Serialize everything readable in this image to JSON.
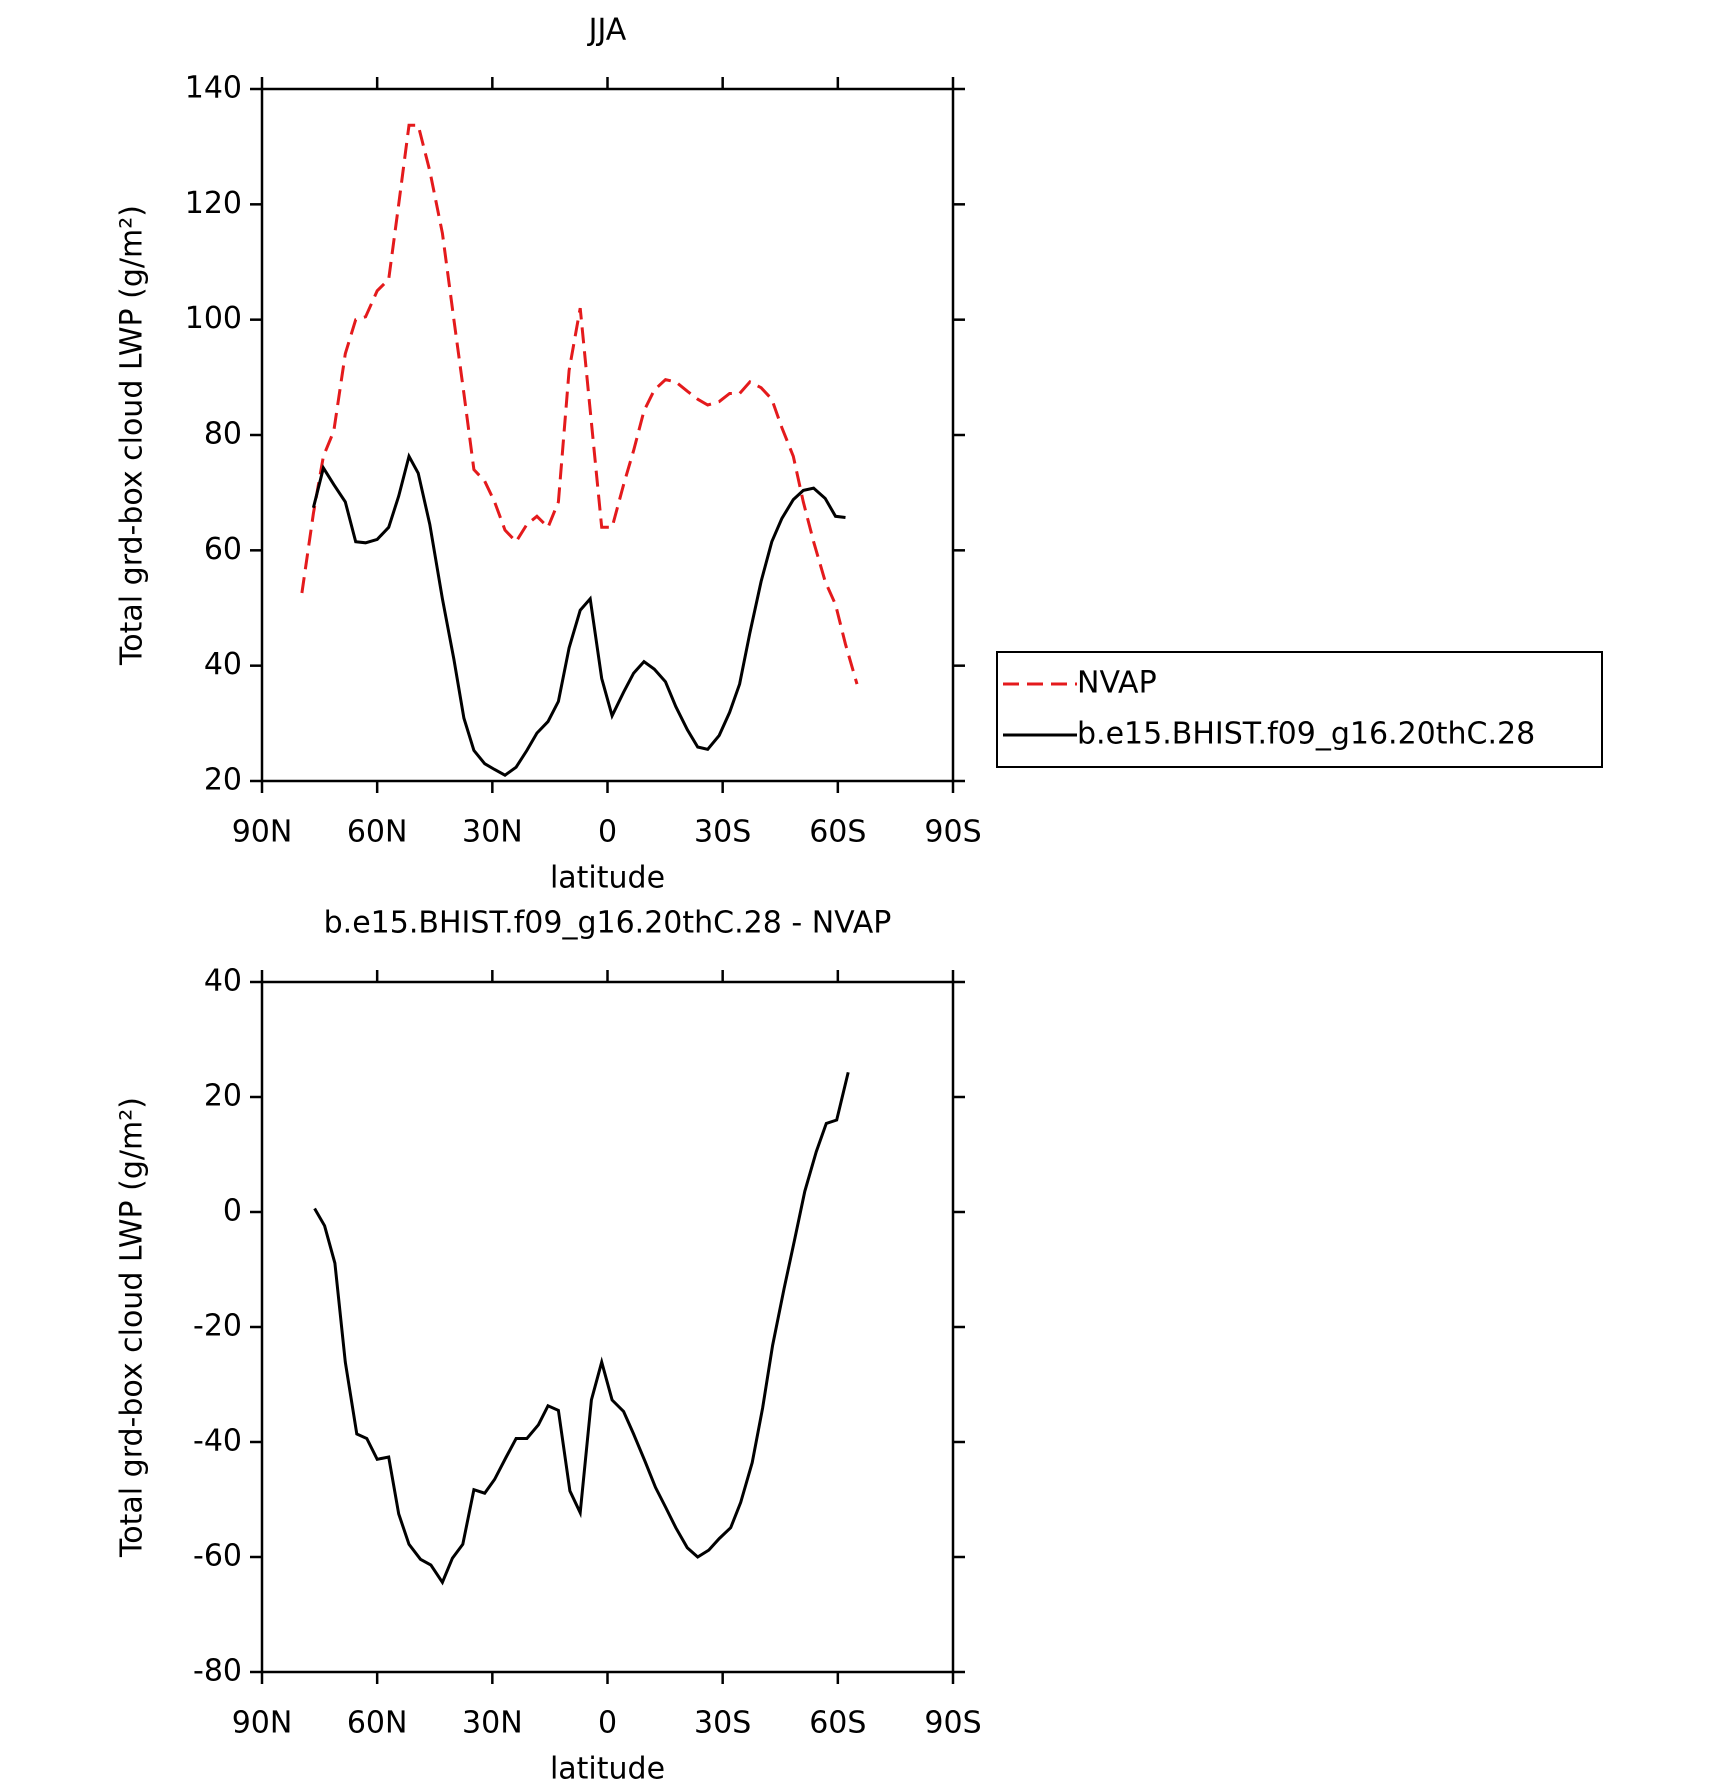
{
  "chart_data": [
    {
      "type": "line",
      "title": "JJA",
      "xlabel": "latitude",
      "ylabel": "Total grd-box cloud LWP (g/m²)",
      "xlim": [
        90,
        -90
      ],
      "xticks": [
        {
          "value": 90,
          "label": "90N"
        },
        {
          "value": 60,
          "label": "60N"
        },
        {
          "value": 30,
          "label": "30N"
        },
        0,
        {
          "value": -30,
          "label": "30S"
        },
        {
          "value": -60,
          "label": "60S"
        },
        {
          "value": -90,
          "label": "90S"
        }
      ],
      "ylim": [
        20,
        140
      ],
      "yticks": [
        20,
        40,
        60,
        80,
        100,
        120,
        140
      ],
      "legend_position": "right",
      "x": [
        79.6,
        76.6,
        74,
        71.3,
        68.3,
        65.6,
        63,
        60,
        57,
        54.4,
        51.7,
        49.3,
        46.3,
        43,
        40,
        37.4,
        34.8,
        32,
        29.4,
        26.7,
        23.8,
        21,
        18.4,
        15.5,
        12.8,
        10,
        7.1,
        4.5,
        1.5,
        -1.2,
        -4.2,
        -6.8,
        -9.5,
        -12.2,
        -15.1,
        -17.8,
        -20.8,
        -23.5,
        -26.1,
        -29.1,
        -31.8,
        -34.4,
        -37.1,
        -40,
        -42.8,
        -45.4,
        -48.4,
        -51,
        -53.7,
        -56.7,
        -59.4,
        -62,
        -65
      ],
      "series": [
        {
          "name": "NVAP",
          "color": "#e41a1c",
          "dashed": true,
          "values": [
            52.6,
            66.4,
            76.3,
            80.7,
            94.1,
            100,
            100.5,
            105,
            107,
            120,
            133.7,
            133.7,
            125.8,
            115,
            100,
            87.2,
            74,
            72,
            68.4,
            63.5,
            61.5,
            64.5,
            65.9,
            64,
            68.4,
            91.2,
            102,
            84.3,
            64,
            64,
            71.4,
            77.3,
            84.2,
            87.8,
            89.6,
            89.2,
            87.6,
            86.2,
            85.2,
            85.8,
            87.2,
            87.2,
            89.2,
            88.2,
            86.2,
            81.3,
            76.3,
            68.4,
            61.5,
            54.6,
            50.6,
            43.7,
            36.8
          ]
        },
        {
          "name": "b.e15.BHIST.f09_g16.20thC.28",
          "color": "#000000",
          "dashed": false,
          "values": [
            null,
            67.4,
            74.3,
            71.4,
            68.4,
            61.5,
            61.3,
            61.9,
            64,
            69.4,
            76.3,
            73.4,
            64.5,
            51.6,
            41.1,
            30.9,
            25.3,
            23,
            22,
            21,
            22.4,
            25.3,
            28.3,
            30.3,
            33.8,
            43.1,
            49.6,
            51.6,
            37.8,
            31.3,
            35.4,
            38.7,
            40.7,
            39.4,
            37.2,
            32.9,
            28.9,
            25.9,
            25.5,
            27.9,
            31.9,
            36.8,
            45.7,
            54.6,
            61.5,
            65.5,
            68.8,
            70.4,
            70.8,
            69,
            65.9,
            65.7,
            null
          ]
        }
      ]
    },
    {
      "type": "line",
      "title": "b.e15.BHIST.f09_g16.20thC.28 - NVAP",
      "xlabel": "latitude",
      "ylabel": "Total grd-box cloud LWP (g/m²)",
      "xlim": [
        90,
        -90
      ],
      "xticks": [
        {
          "value": 90,
          "label": "90N"
        },
        {
          "value": 60,
          "label": "60N"
        },
        {
          "value": 30,
          "label": "30N"
        },
        0,
        {
          "value": -30,
          "label": "30S"
        },
        {
          "value": -60,
          "label": "60S"
        },
        {
          "value": -90,
          "label": "90S"
        }
      ],
      "ylim": [
        -80,
        40
      ],
      "yticks": [
        -80,
        -60,
        -40,
        -20,
        0,
        20,
        40
      ],
      "x": [
        76.3,
        73.7,
        71,
        68.3,
        65.3,
        62.7,
        60,
        57,
        54.4,
        51.7,
        48.7,
        46,
        43,
        40.4,
        37.7,
        34.8,
        32,
        29.4,
        26.4,
        23.8,
        21,
        18,
        15.5,
        12.8,
        9.8,
        7.1,
        4.2,
        1.5,
        -1.2,
        -4.2,
        -6.8,
        -9.8,
        -12.5,
        -15.1,
        -17.8,
        -20.8,
        -23.5,
        -26.4,
        -29.1,
        -32.1,
        -34.7,
        -37.7,
        -40.4,
        -43,
        -46,
        -48.7,
        -51.4,
        -54.4,
        -57,
        -59.7,
        -62.7
      ],
      "color": "#000000",
      "values": [
        0.6,
        -2.4,
        -8.9,
        -26.1,
        -38.6,
        -39.4,
        -43,
        -42.6,
        -52.5,
        -57.8,
        -60.4,
        -61.4,
        -64.4,
        -60.2,
        -57.8,
        -48.3,
        -48.9,
        -46.5,
        -42.6,
        -39.4,
        -39.4,
        -37,
        -33.7,
        -34.5,
        -48.5,
        -52.3,
        -32.7,
        -26.1,
        -32.7,
        -34.7,
        -38.6,
        -43.4,
        -47.9,
        -51.3,
        -54.9,
        -58.4,
        -60,
        -58.8,
        -56.8,
        -54.9,
        -50.5,
        -43.6,
        -34.1,
        -23.2,
        -13.3,
        -4.9,
        3.6,
        10.5,
        15.4,
        16,
        24.3
      ]
    }
  ]
}
